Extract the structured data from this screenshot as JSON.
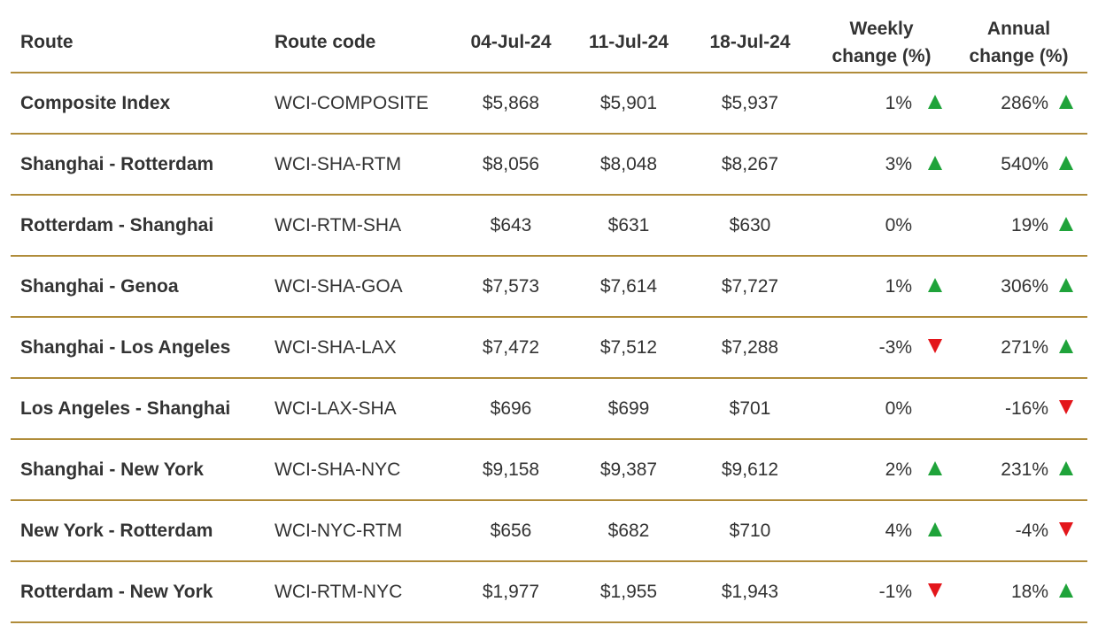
{
  "chart_data": {
    "type": "table",
    "columns": [
      "Route",
      "Route code",
      "04-Jul-24",
      "11-Jul-24",
      "18-Jul-24",
      "Weekly\nchange (%)",
      "Annual\nchange (%)"
    ],
    "rows": [
      {
        "route": "Composite Index",
        "code": "WCI-COMPOSITE",
        "v1": "$5,868",
        "v2": "$5,901",
        "v3": "$5,937",
        "weekly": "1%",
        "weekly_dir": "up",
        "annual": "286%",
        "annual_dir": "up"
      },
      {
        "route": "Shanghai - Rotterdam",
        "code": "WCI-SHA-RTM",
        "v1": "$8,056",
        "v2": "$8,048",
        "v3": "$8,267",
        "weekly": "3%",
        "weekly_dir": "up",
        "annual": "540%",
        "annual_dir": "up"
      },
      {
        "route": "Rotterdam - Shanghai",
        "code": "WCI-RTM-SHA",
        "v1": "$643",
        "v2": "$631",
        "v3": "$630",
        "weekly": "0%",
        "weekly_dir": "none",
        "annual": "19%",
        "annual_dir": "up"
      },
      {
        "route": "Shanghai - Genoa",
        "code": "WCI-SHA-GOA",
        "v1": "$7,573",
        "v2": "$7,614",
        "v3": "$7,727",
        "weekly": "1%",
        "weekly_dir": "up",
        "annual": "306%",
        "annual_dir": "up"
      },
      {
        "route": "Shanghai - Los Angeles",
        "code": "WCI-SHA-LAX",
        "v1": "$7,472",
        "v2": "$7,512",
        "v3": "$7,288",
        "weekly": "-3%",
        "weekly_dir": "down",
        "annual": "271%",
        "annual_dir": "up"
      },
      {
        "route": "Los Angeles - Shanghai",
        "code": "WCI-LAX-SHA",
        "v1": "$696",
        "v2": "$699",
        "v3": "$701",
        "weekly": "0%",
        "weekly_dir": "none",
        "annual": "-16%",
        "annual_dir": "down"
      },
      {
        "route": "Shanghai - New York",
        "code": "WCI-SHA-NYC",
        "v1": "$9,158",
        "v2": "$9,387",
        "v3": "$9,612",
        "weekly": "2%",
        "weekly_dir": "up",
        "annual": "231%",
        "annual_dir": "up"
      },
      {
        "route": "New York - Rotterdam",
        "code": "WCI-NYC-RTM",
        "v1": "$656",
        "v2": "$682",
        "v3": "$710",
        "weekly": "4%",
        "weekly_dir": "up",
        "annual": "-4%",
        "annual_dir": "down"
      },
      {
        "route": "Rotterdam - New York",
        "code": "WCI-RTM-NYC",
        "v1": "$1,977",
        "v2": "$1,955",
        "v3": "$1,943",
        "weekly": "-1%",
        "weekly_dir": "down",
        "annual": "18%",
        "annual_dir": "up"
      }
    ]
  },
  "colors": {
    "up": "#1fa33a",
    "down": "#e3161b",
    "rule": "#b08c3a",
    "text": "#333333"
  }
}
